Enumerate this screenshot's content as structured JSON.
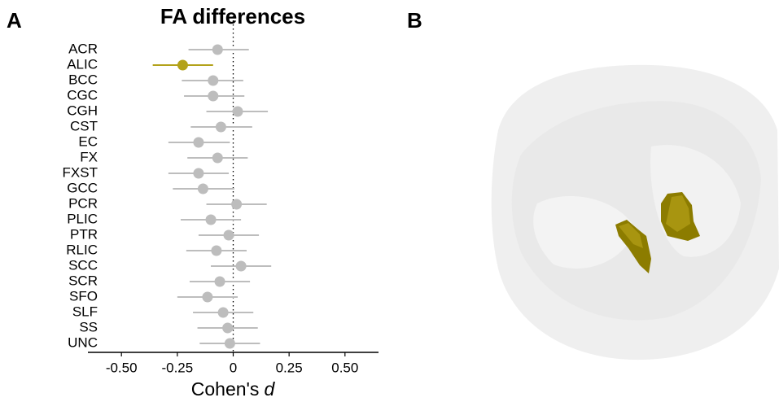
{
  "chart_data": {
    "type": "forest",
    "title": "FA differences",
    "panel_labels": [
      "A",
      "B"
    ],
    "xlabel": [
      "Cohen's",
      "d"
    ],
    "categories": [
      "ACR",
      "ALIC",
      "BCC",
      "CGC",
      "CGH",
      "CST",
      "EC",
      "FX",
      "FXST",
      "GCC",
      "PCR",
      "PLIC",
      "PTR",
      "RLIC",
      "SCC",
      "SCR",
      "SFO",
      "SLF",
      "SS",
      "UNC"
    ],
    "values": [
      -0.07,
      -0.226,
      -0.09,
      -0.09,
      0.02,
      -0.055,
      -0.155,
      -0.07,
      -0.155,
      -0.135,
      0.015,
      -0.1,
      -0.02,
      -0.075,
      0.035,
      -0.06,
      -0.115,
      -0.045,
      -0.025,
      -0.015
    ],
    "lower": [
      -0.2,
      -0.36,
      -0.23,
      -0.22,
      -0.12,
      -0.19,
      -0.29,
      -0.205,
      -0.29,
      -0.27,
      -0.12,
      -0.235,
      -0.155,
      -0.21,
      -0.1,
      -0.195,
      -0.25,
      -0.18,
      -0.16,
      -0.15
    ],
    "upper": [
      0.07,
      -0.09,
      0.045,
      0.05,
      0.155,
      0.085,
      -0.015,
      0.065,
      -0.02,
      0.005,
      0.15,
      0.035,
      0.115,
      0.06,
      0.17,
      0.075,
      0.02,
      0.09,
      0.11,
      0.12
    ],
    "colors": [
      "#bdbdbd",
      "#b3a21a",
      "#bdbdbd",
      "#bdbdbd",
      "#bdbdbd",
      "#bdbdbd",
      "#bdbdbd",
      "#bdbdbd",
      "#bdbdbd",
      "#bdbdbd",
      "#bdbdbd",
      "#bdbdbd",
      "#bdbdbd",
      "#bdbdbd",
      "#bdbdbd",
      "#bdbdbd",
      "#bdbdbd",
      "#bdbdbd",
      "#bdbdbd",
      "#bdbdbd"
    ],
    "xlim": [
      -0.65,
      0.65
    ],
    "xticks": [
      {
        "value": -0.5,
        "label": "-0.50"
      },
      -0.25,
      0,
      0.25,
      {
        "value": 0.5,
        "label": "0.50"
      }
    ],
    "reference_line": 0
  }
}
